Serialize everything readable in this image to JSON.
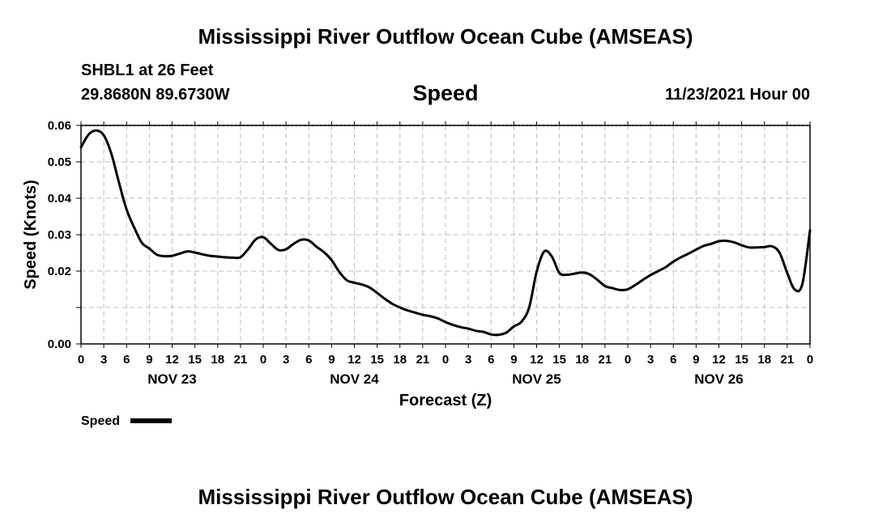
{
  "header": {
    "title": "Mississippi River Outflow Ocean Cube (AMSEAS)",
    "station": "SHBL1 at 26 Feet",
    "coords": "29.8680N  89.6730W",
    "datetime": "11/23/2021 Hour 00"
  },
  "footer": {
    "title": "Mississippi River Outflow Ocean Cube (AMSEAS)"
  },
  "chart_data": {
    "type": "line",
    "title": "Speed",
    "xlabel": "Forecast (Z)",
    "ylabel": "Speed (Knots)",
    "xlim": [
      0,
      96
    ],
    "ylim": [
      0,
      0.06
    ],
    "yticks": [
      0,
      0.01,
      0.02,
      0.03,
      0.04,
      0.05,
      0.06
    ],
    "ytick_labels": [
      "0.00",
      "",
      "0.02",
      "0.03",
      "0.04",
      "0.05",
      "0.06"
    ],
    "xtick_labels": [
      "0",
      "3",
      "6",
      "9",
      "12",
      "15",
      "18",
      "21",
      "0",
      "3",
      "6",
      "9",
      "12",
      "15",
      "18",
      "21",
      "0",
      "3",
      "6",
      "9",
      "12",
      "15",
      "18",
      "21",
      "0",
      "3",
      "6",
      "9",
      "12",
      "15",
      "18",
      "21",
      "0"
    ],
    "day_labels": [
      {
        "label": "NOV 23",
        "hour": 12
      },
      {
        "label": "NOV 24",
        "hour": 36
      },
      {
        "label": "NOV 25",
        "hour": 60
      },
      {
        "label": "NOV 26",
        "hour": 84
      }
    ],
    "grid": true,
    "legend": {
      "position": "bottom-left",
      "entries": [
        "Speed"
      ]
    },
    "series": [
      {
        "name": "Speed",
        "x": [
          0,
          1,
          2,
          3,
          4,
          5,
          6,
          7,
          8,
          9,
          10,
          11,
          12,
          13,
          14,
          15,
          16,
          17,
          18,
          19,
          20,
          21,
          22,
          23,
          24,
          25,
          26,
          27,
          28,
          29,
          30,
          31,
          32,
          33,
          34,
          35,
          36,
          37,
          38,
          39,
          40,
          41,
          42,
          43,
          44,
          45,
          46,
          47,
          48,
          49,
          50,
          51,
          52,
          53,
          54,
          55,
          56,
          57,
          58,
          59,
          60,
          61,
          62,
          63,
          64,
          65,
          66,
          67,
          68,
          69,
          70,
          71,
          72,
          73,
          74,
          75,
          76,
          77,
          78,
          79,
          80,
          81,
          82,
          83,
          84,
          85,
          86,
          87,
          88,
          89,
          90,
          91,
          92,
          93,
          94,
          95,
          96
        ],
        "values": [
          0.054,
          0.0575,
          0.0586,
          0.0573,
          0.0522,
          0.0443,
          0.0369,
          0.032,
          0.0278,
          0.0262,
          0.0245,
          0.0241,
          0.0242,
          0.0248,
          0.0254,
          0.0251,
          0.0246,
          0.0242,
          0.024,
          0.0238,
          0.0237,
          0.0238,
          0.026,
          0.0287,
          0.0293,
          0.0275,
          0.0258,
          0.026,
          0.0275,
          0.0286,
          0.0284,
          0.0267,
          0.0252,
          0.023,
          0.0198,
          0.0175,
          0.0168,
          0.0163,
          0.0155,
          0.014,
          0.0124,
          0.011,
          0.01,
          0.0092,
          0.0086,
          0.008,
          0.0076,
          0.007,
          0.006,
          0.0052,
          0.0046,
          0.0042,
          0.0036,
          0.0033,
          0.0026,
          0.0025,
          0.0031,
          0.0048,
          0.0061,
          0.0099,
          0.0198,
          0.0254,
          0.024,
          0.0195,
          0.019,
          0.0193,
          0.0196,
          0.0191,
          0.0176,
          0.0159,
          0.0153,
          0.0148,
          0.015,
          0.0162,
          0.0176,
          0.0189,
          0.02,
          0.0211,
          0.0226,
          0.0238,
          0.0248,
          0.0259,
          0.0269,
          0.0275,
          0.0282,
          0.0283,
          0.0279,
          0.0271,
          0.0265,
          0.0265,
          0.0266,
          0.0268,
          0.025,
          0.0195,
          0.0149,
          0.0165,
          0.0312
        ]
      }
    ]
  }
}
